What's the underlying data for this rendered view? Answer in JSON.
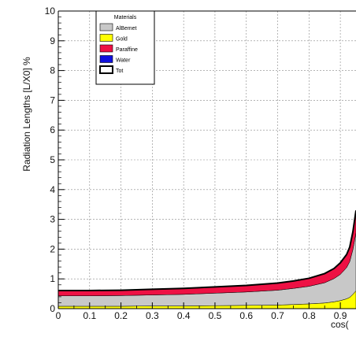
{
  "chart_data": {
    "type": "area",
    "ylabel": "Radiation Lengths [L/X0] %",
    "xlabel": "cos(θ)",
    "xlabel_visible": "cos(",
    "xlim": [
      0,
      0.95
    ],
    "ylim": [
      0,
      10
    ],
    "grid": true,
    "stacked": true,
    "legend": {
      "title": "Materials",
      "placement": "top-left",
      "entries": [
        {
          "name": "AlBemet",
          "color": "#c8c8c8"
        },
        {
          "name": "Gold",
          "color": "#ffff00"
        },
        {
          "name": "Paraffine",
          "color": "#ee1144"
        },
        {
          "name": "Water",
          "color": "#1111dd"
        },
        {
          "name": "Tot",
          "color": "#ffffff"
        }
      ]
    },
    "x": [
      0,
      0.1,
      0.2,
      0.3,
      0.4,
      0.5,
      0.6,
      0.7,
      0.75,
      0.8,
      0.85,
      0.88,
      0.9,
      0.92,
      0.93,
      0.94,
      0.95
    ],
    "series": [
      {
        "name": "Gold",
        "color": "#ffff00",
        "values": [
          0.08,
          0.08,
          0.08,
          0.09,
          0.09,
          0.1,
          0.11,
          0.12,
          0.14,
          0.16,
          0.19,
          0.23,
          0.27,
          0.33,
          0.38,
          0.48,
          0.6
        ]
      },
      {
        "name": "AlBemet",
        "color": "#c8c8c8",
        "values": [
          0.35,
          0.35,
          0.36,
          0.37,
          0.39,
          0.42,
          0.45,
          0.5,
          0.54,
          0.59,
          0.68,
          0.78,
          0.88,
          1.05,
          1.2,
          1.5,
          1.95
        ]
      },
      {
        "name": "Paraffine",
        "color": "#ee1144",
        "values": [
          0.17,
          0.17,
          0.17,
          0.18,
          0.19,
          0.2,
          0.21,
          0.23,
          0.24,
          0.26,
          0.3,
          0.33,
          0.37,
          0.42,
          0.47,
          0.57,
          0.72
        ]
      },
      {
        "name": "Water",
        "color": "#1111dd",
        "values": [
          0.01,
          0.01,
          0.01,
          0.01,
          0.01,
          0.01,
          0.01,
          0.01,
          0.01,
          0.01,
          0.01,
          0.01,
          0.02,
          0.02,
          0.02,
          0.03,
          0.03
        ]
      }
    ],
    "xticks": [
      "0",
      "0.1",
      "0.2",
      "0.3",
      "0.4",
      "0.5",
      "0.6",
      "0.7",
      "0.8",
      "0.9"
    ],
    "yticks": [
      "0",
      "1",
      "2",
      "3",
      "4",
      "5",
      "6",
      "7",
      "8",
      "9",
      "10"
    ]
  }
}
